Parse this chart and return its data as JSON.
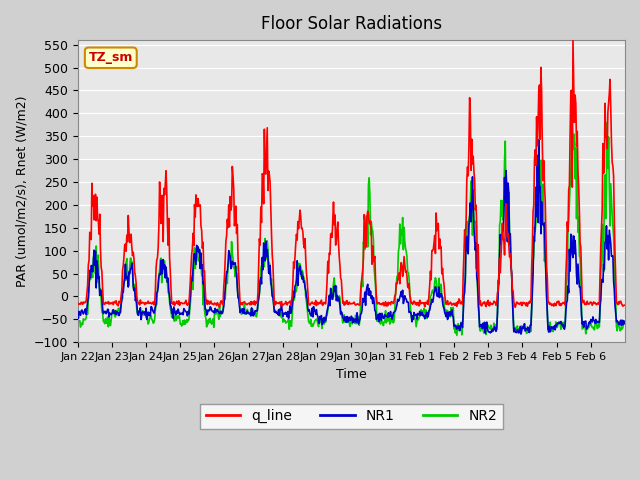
{
  "title": "Floor Solar Radiations",
  "xlabel": "Time",
  "ylabel": "PAR (umol/m2/s), Rnet (W/m2)",
  "ylim": [
    -100,
    560
  ],
  "yticks": [
    -100,
    -50,
    0,
    50,
    100,
    150,
    200,
    250,
    300,
    350,
    400,
    450,
    500,
    550
  ],
  "annotation": "TZ_sm",
  "line_colors": {
    "q_line": "#ff0000",
    "NR1": "#0000cc",
    "NR2": "#00cc00"
  },
  "line_widths": {
    "q_line": 1.2,
    "NR1": 1.2,
    "NR2": 1.2
  },
  "tick_labels": [
    "Jan 22",
    "Jan 23",
    "Jan 24",
    "Jan 25",
    "Jan 26",
    "Jan 27",
    "Jan 28",
    "Jan 29",
    "Jan 30",
    "Jan 31",
    "Feb 1",
    "Feb 2",
    "Feb 3",
    "Feb 4",
    "Feb 5",
    "Feb 6"
  ],
  "n_days": 16,
  "pts_per_day": 48,
  "day_peaks_q": [
    265,
    170,
    285,
    225,
    270,
    370,
    200,
    190,
    200,
    80,
    170,
    415,
    175,
    520,
    520,
    520
  ],
  "day_peaks_nr1": [
    90,
    80,
    85,
    115,
    110,
    110,
    70,
    25,
    25,
    15,
    20,
    230,
    310,
    310,
    155,
    160
  ],
  "day_peaks_nr2": [
    100,
    90,
    90,
    120,
    115,
    115,
    75,
    30,
    250,
    165,
    40,
    235,
    330,
    325,
    365,
    365
  ],
  "night_base_q": -15,
  "deep_night_nr1": [
    -35,
    -35,
    -35,
    -35,
    -35,
    -35,
    -35,
    -50,
    -50,
    -40,
    -40,
    -65,
    -75,
    -70,
    -60,
    -55
  ],
  "deep_night_nr2": [
    -55,
    -35,
    -50,
    -55,
    -35,
    -35,
    -55,
    -55,
    -55,
    -50,
    -35,
    -70,
    -70,
    -70,
    -65,
    -65
  ]
}
